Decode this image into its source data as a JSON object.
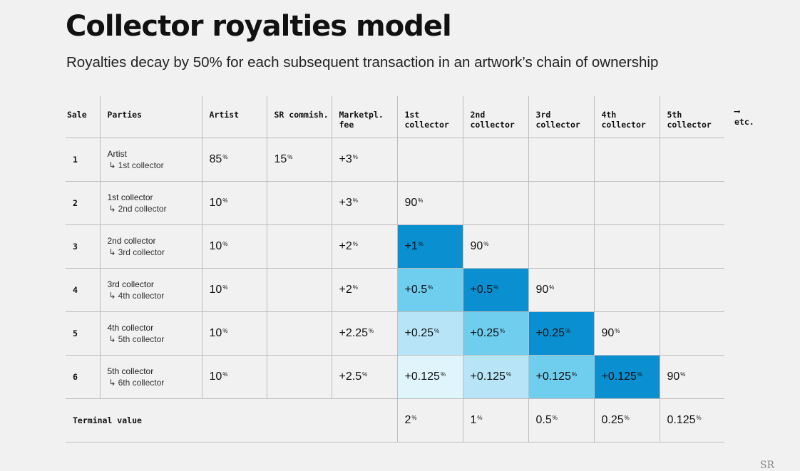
{
  "title": "Collector royalties model",
  "subtitle": "Royalties decay by 50% for each subsequent transaction in an artwork’s chain of ownership",
  "headers": {
    "sale": "Sale",
    "parties": "Parties",
    "artist": "Artist",
    "sr": "SR commish.",
    "market": "Marketpl. fee",
    "c1": "1st collector",
    "c2": "2nd collector",
    "c3": "3rd collector",
    "c4": "4th collector",
    "c5": "5th collector",
    "etc_arrow": "⟶",
    "etc": "etc."
  },
  "rows": [
    {
      "sale": "1",
      "from": "Artist",
      "to": "1st collector",
      "arrow": "↳",
      "artist": "85",
      "sr": "15",
      "market": "+3",
      "c1": "",
      "c2": "",
      "c3": "",
      "c4": "",
      "c5": ""
    },
    {
      "sale": "2",
      "from": "1st collector",
      "to": "2nd collector",
      "arrow": "↳",
      "artist": "10",
      "sr": "",
      "market": "+3",
      "c1": "90",
      "c2": "",
      "c3": "",
      "c4": "",
      "c5": ""
    },
    {
      "sale": "3",
      "from": "2nd collector",
      "to": "3rd collector",
      "arrow": "↳",
      "artist": "10",
      "sr": "",
      "market": "+2",
      "c1": "+1",
      "c2": "90",
      "c3": "",
      "c4": "",
      "c5": ""
    },
    {
      "sale": "4",
      "from": "3rd collector",
      "to": "4th collector",
      "arrow": "↳",
      "artist": "10",
      "sr": "",
      "market": "+2",
      "c1": "+0.5",
      "c2": "+0.5",
      "c3": "90",
      "c4": "",
      "c5": ""
    },
    {
      "sale": "5",
      "from": "4th collector",
      "to": "5th collector",
      "arrow": "↳",
      "artist": "10",
      "sr": "",
      "market": "+2.25",
      "c1": "+0.25",
      "c2": "+0.25",
      "c3": "+0.25",
      "c4": "90",
      "c5": ""
    },
    {
      "sale": "6",
      "from": "5th collector",
      "to": "6th collector",
      "arrow": "↳",
      "artist": "10",
      "sr": "",
      "market": "+2.5",
      "c1": "+0.125",
      "c2": "+0.125",
      "c3": "+0.125",
      "c4": "+0.125",
      "c5": "90"
    }
  ],
  "terminal": {
    "label": "Terminal value",
    "c1": "2",
    "c2": "1",
    "c3": "0.5",
    "c4": "0.25",
    "c5": "0.125"
  },
  "percent_sign": "%",
  "colors": {
    "shade_1": "#0a8fd0",
    "shade_2": "#6fcdee",
    "shade_3": "#b7e5f7",
    "shade_4": "#e0f4fc"
  },
  "logo": "SR",
  "chart_data": {
    "type": "table",
    "title": "Collector royalties model",
    "subtitle": "Royalties decay by 50% for each subsequent transaction in an artwork’s chain of ownership",
    "columns": [
      "Sale",
      "Parties",
      "Artist",
      "SR commish.",
      "Marketpl. fee",
      "1st collector",
      "2nd collector",
      "3rd collector",
      "4th collector",
      "5th collector",
      "etc."
    ],
    "rows": [
      [
        "1",
        "Artist → 1st collector",
        "85%",
        "15%",
        "+3%",
        "",
        "",
        "",
        "",
        ""
      ],
      [
        "2",
        "1st collector → 2nd collector",
        "10%",
        "",
        "+3%",
        "90%",
        "",
        "",
        "",
        ""
      ],
      [
        "3",
        "2nd collector → 3rd collector",
        "10%",
        "",
        "+2%",
        "+1%",
        "90%",
        "",
        "",
        ""
      ],
      [
        "4",
        "3rd collector → 4th collector",
        "10%",
        "",
        "+2%",
        "+0.5%",
        "+0.5%",
        "90%",
        "",
        ""
      ],
      [
        "5",
        "4th collector → 5th collector",
        "10%",
        "",
        "+2.25%",
        "+0.25%",
        "+0.25%",
        "+0.25%",
        "90%",
        ""
      ],
      [
        "6",
        "5th collector → 6th collector",
        "10%",
        "",
        "+2.5%",
        "+0.125%",
        "+0.125%",
        "+0.125%",
        "+0.125%",
        "90%"
      ]
    ],
    "terminal_value": [
      "2%",
      "1%",
      "0.5%",
      "0.25%",
      "0.125%"
    ]
  }
}
